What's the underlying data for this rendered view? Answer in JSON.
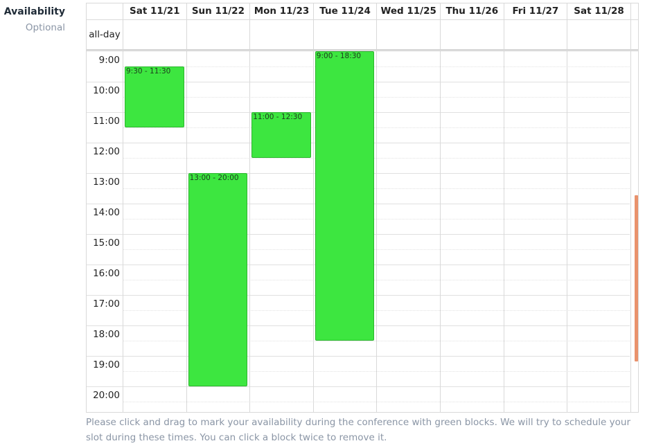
{
  "field": {
    "label": "Availability",
    "sublabel": "Optional"
  },
  "calendar": {
    "days": [
      "Sat 11/21",
      "Sun 11/22",
      "Mon 11/23",
      "Tue 11/24",
      "Wed 11/25",
      "Thu 11/26",
      "Fri 11/27",
      "Sat 11/28"
    ],
    "allday_label": "all-day",
    "start_hour": 9,
    "hours": [
      "9:00",
      "10:00",
      "11:00",
      "12:00",
      "13:00",
      "14:00",
      "15:00",
      "16:00",
      "17:00",
      "18:00",
      "19:00",
      "20:00"
    ],
    "events": [
      {
        "day": 0,
        "start": 9.5,
        "end": 11.5,
        "label": "9:30 - 11:30"
      },
      {
        "day": 1,
        "start": 13,
        "end": 20,
        "label": "13:00 - 20:00"
      },
      {
        "day": 2,
        "start": 11,
        "end": 12.5,
        "label": "11:00 - 12:30"
      },
      {
        "day": 3,
        "start": 9,
        "end": 18.5,
        "label": "9:00 - 18:30"
      }
    ],
    "event_color": "#3de640"
  },
  "help": {
    "text": "Please click and drag to mark your availability during the conference with green blocks. We will try to schedule your slot during these times. You can click a block twice to remove it."
  }
}
